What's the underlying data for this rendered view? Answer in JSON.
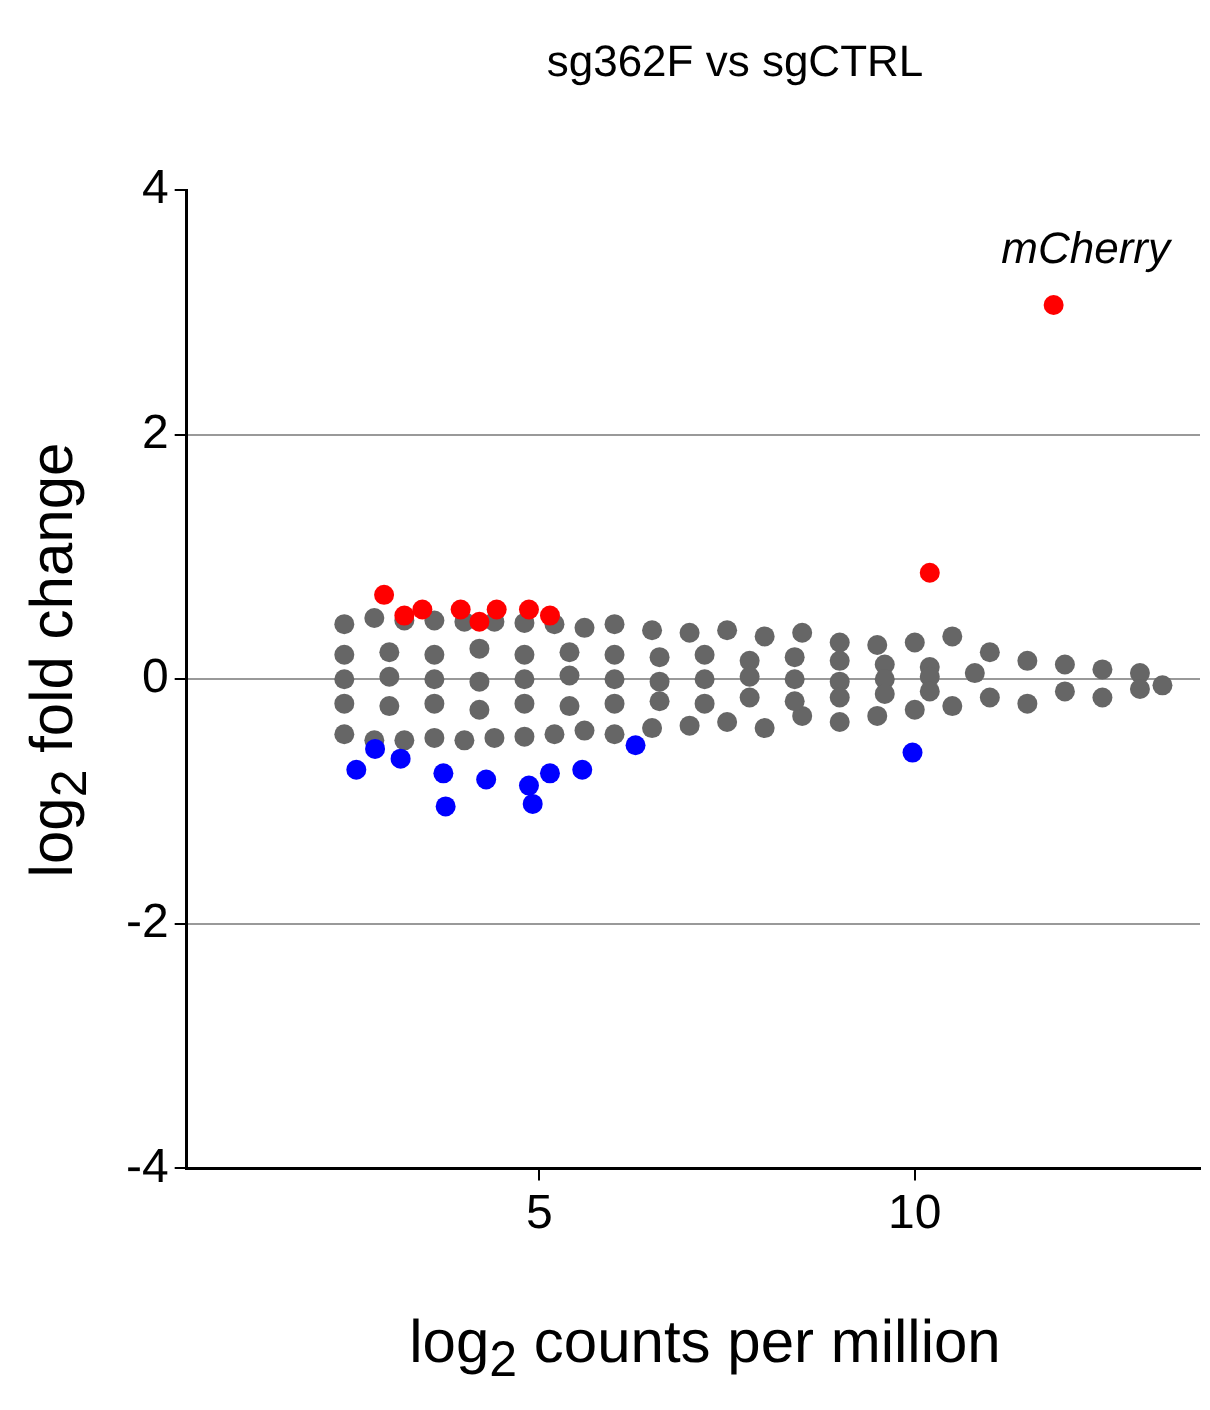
{
  "chart_data": {
    "type": "scatter",
    "title": "sg362F vs sgCTRL",
    "xlabel": "log$_{2}$ counts per million",
    "ylabel": "log$_{2}$ fold change",
    "xlim": [
      0.3,
      13.8
    ],
    "ylim": [
      -4,
      4
    ],
    "xticks": [
      5,
      10
    ],
    "yticks": [
      -4,
      -2,
      0,
      2,
      4
    ],
    "grid": "y",
    "legend": false,
    "marker": "circle",
    "annotations": [
      {
        "text": "mCherry",
        "x": 11.85,
        "y": 3.06
      }
    ],
    "series": [
      {
        "color": "#666666",
        "x": [
          2.4,
          2.8,
          3.2,
          3.6,
          4.0,
          4.4,
          4.8,
          5.2,
          5.6,
          6.0,
          6.5,
          7.0,
          7.5,
          8.0,
          8.5,
          9.0,
          9.5,
          10.0,
          10.5,
          11.0,
          11.5,
          12.0,
          12.5,
          13.0,
          13.3,
          2.4,
          2.8,
          3.2,
          3.6,
          4.0,
          4.4,
          4.8,
          5.2,
          5.6,
          6.0,
          6.5,
          7.0,
          7.5,
          8.0,
          8.5,
          9.0,
          9.5,
          10.0,
          10.5,
          11.0,
          11.5,
          12.0,
          12.5,
          13.0,
          2.4,
          3.0,
          3.6,
          4.2,
          4.8,
          5.4,
          6.0,
          6.6,
          7.2,
          7.8,
          8.4,
          9.0,
          9.6,
          10.2,
          2.4,
          3.0,
          3.6,
          4.2,
          4.8,
          5.4,
          6.0,
          6.6,
          7.2,
          7.8,
          8.4,
          9.0,
          9.6,
          10.2,
          2.4,
          3.0,
          3.6,
          4.2,
          4.8,
          5.4,
          6.0,
          6.6,
          7.2,
          7.8,
          8.4,
          9.0,
          9.6,
          10.2,
          10.8
        ],
        "values": [
          0.45,
          0.5,
          0.48,
          0.48,
          0.47,
          0.47,
          0.46,
          0.45,
          0.42,
          0.45,
          0.4,
          0.38,
          0.4,
          0.35,
          0.38,
          0.3,
          0.28,
          0.3,
          0.35,
          0.22,
          0.15,
          0.12,
          0.08,
          0.05,
          -0.05,
          -0.45,
          -0.5,
          -0.5,
          -0.48,
          -0.5,
          -0.48,
          -0.47,
          -0.45,
          -0.42,
          -0.45,
          -0.4,
          -0.38,
          -0.35,
          -0.4,
          -0.3,
          -0.35,
          -0.3,
          -0.25,
          -0.22,
          -0.15,
          -0.2,
          -0.1,
          -0.15,
          -0.08,
          0.2,
          0.22,
          0.2,
          0.25,
          0.2,
          0.22,
          0.2,
          0.18,
          0.2,
          0.15,
          0.18,
          0.15,
          0.12,
          0.1,
          0,
          0.02,
          0,
          -0.02,
          0,
          0.03,
          0,
          -0.02,
          0,
          0.02,
          0,
          -0.02,
          0,
          0.02,
          -0.2,
          -0.22,
          -0.2,
          -0.25,
          -0.2,
          -0.22,
          -0.2,
          -0.18,
          -0.2,
          -0.15,
          -0.18,
          -0.15,
          -0.12,
          -0.1,
          0.05
        ]
      },
      {
        "color": "#ff0000",
        "x": [
          2.93,
          3.2,
          3.44,
          3.95,
          4.2,
          4.43,
          4.86,
          5.14,
          10.2,
          11.85
        ],
        "values": [
          0.69,
          0.52,
          0.57,
          0.57,
          0.47,
          0.57,
          0.57,
          0.52,
          0.87,
          3.06
        ]
      },
      {
        "color": "#0000ff",
        "x": [
          2.56,
          2.81,
          3.15,
          3.72,
          3.75,
          4.29,
          4.86,
          4.91,
          5.14,
          5.57,
          6.28,
          9.97
        ],
        "values": [
          -0.74,
          -0.57,
          -0.65,
          -0.77,
          -1.04,
          -0.82,
          -0.87,
          -1.02,
          -0.77,
          -0.74,
          -0.54,
          -0.6
        ]
      }
    ]
  }
}
